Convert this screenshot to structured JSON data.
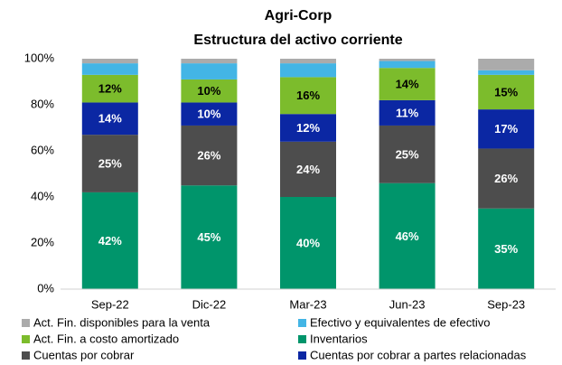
{
  "chart_data": {
    "type": "stacked_bar",
    "title": "Agri-Corp",
    "subtitle": "Estructura del activo  corriente",
    "categories": [
      "Sep-22",
      "Dic-22",
      "Mar-23",
      "Jun-23",
      "Sep-23"
    ],
    "series": [
      {
        "name": "Inventarios",
        "color": "#00956b",
        "values": [
          42,
          45,
          40,
          46,
          35
        ],
        "value_labels": [
          "42%",
          "45%",
          "40%",
          "46%",
          "35%"
        ]
      },
      {
        "name": "Cuentas por cobrar",
        "color": "#4d4d4d",
        "values": [
          25,
          26,
          24,
          25,
          26
        ],
        "value_labels": [
          "25%",
          "26%",
          "24%",
          "25%",
          "26%"
        ]
      },
      {
        "name": "Cuentas por cobrar a partes relacionadas",
        "color": "#0b27a3",
        "values": [
          14,
          10,
          12,
          11,
          17
        ],
        "value_labels": [
          "14%",
          "10%",
          "12%",
          "11%",
          "17%"
        ]
      },
      {
        "name": "Act. Fin. a costo amortizado",
        "color": "#7cbc2c",
        "values": [
          12,
          10,
          16,
          14,
          15
        ],
        "value_labels": [
          "12%",
          "10%",
          "16%",
          "14%",
          "15%"
        ]
      },
      {
        "name": "Efectivo  y equivalentes de efectivo",
        "color": "#43b5e5",
        "values": [
          5,
          7,
          6,
          3,
          2
        ]
      },
      {
        "name": "Act. Fin. disponibles para la venta",
        "color": "#ababab",
        "values": [
          2,
          2,
          2,
          1,
          5
        ]
      }
    ],
    "ylim": [
      0,
      100
    ],
    "yticks": [
      {
        "value": 0,
        "label": "0%"
      },
      {
        "value": 20,
        "label": "20%"
      },
      {
        "value": 40,
        "label": "40%"
      },
      {
        "value": 60,
        "label": "60%"
      },
      {
        "value": 80,
        "label": "80%"
      },
      {
        "value": 100,
        "label": "100%"
      }
    ],
    "grid": false
  }
}
